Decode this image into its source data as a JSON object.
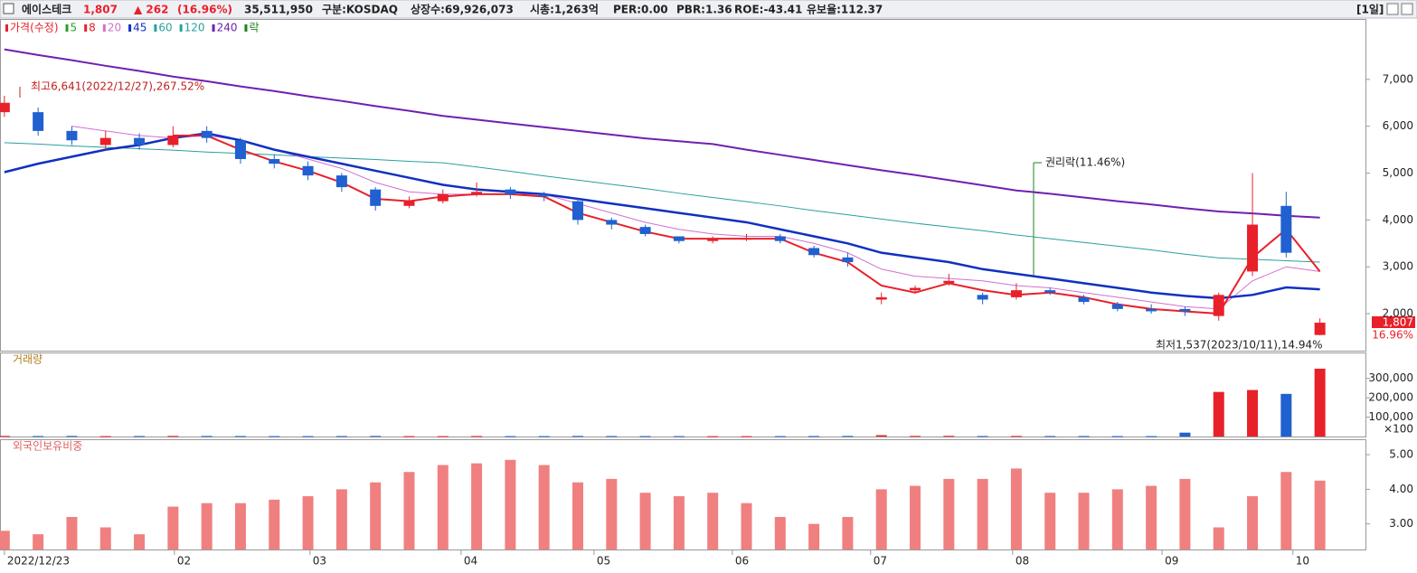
{
  "header": {
    "name": "에이스테크",
    "price": "1,807",
    "change": "▲ 262",
    "change_pct": "(16.96%)",
    "volume": "35,511,950",
    "market": "구분:KOSDAQ",
    "shares": "상장수:69,926,073",
    "cap": "시총:1,263억",
    "per": "PER:0.00",
    "pbr": "PBR:1.36",
    "roe": "ROE:-43.41",
    "reserve": "유보율:112.37",
    "period": "[1일]"
  },
  "chart_data": [
    {
      "type": "candlestick",
      "up_color": "#e8202a",
      "down_color": "#2060d0",
      "legend": [
        {
          "name": "가격(수정)",
          "color": "#e8202a"
        },
        {
          "name": "5",
          "color": "#28a028"
        },
        {
          "name": "8",
          "color": "#e8202a"
        },
        {
          "name": "20",
          "color": "#d070d0"
        },
        {
          "name": "45",
          "color": "#1030c0"
        },
        {
          "name": "60",
          "color": "#2aa0a0"
        },
        {
          "name": "120",
          "color": "#2aa0a0"
        },
        {
          "name": "240",
          "color": "#7020b0"
        },
        {
          "name": "락",
          "color": "#208020"
        }
      ],
      "open": [
        6300,
        6300,
        5900,
        5600,
        5750,
        5600,
        5900,
        5700,
        5300,
        5150,
        4950,
        4650,
        4300,
        4400,
        4550,
        4650,
        4550,
        4400,
        4000,
        3850,
        3650,
        3550,
        3580,
        3650,
        3400,
        3200,
        2300,
        2500,
        2650,
        2400,
        2350,
        2500,
        2350,
        2200,
        2100,
        2100,
        1950,
        2900,
        4300,
        1545
      ],
      "high": [
        6650,
        6400,
        6000,
        5900,
        5850,
        6000,
        6000,
        5750,
        5400,
        5250,
        5000,
        4700,
        4500,
        4650,
        4800,
        4700,
        4600,
        4450,
        4050,
        3900,
        3650,
        3650,
        3700,
        3700,
        3450,
        3300,
        2450,
        2600,
        2850,
        2450,
        2650,
        2550,
        2400,
        2250,
        2200,
        2150,
        2450,
        5000,
        4600,
        1900
      ],
      "low": [
        6200,
        5800,
        5600,
        5500,
        5500,
        5550,
        5650,
        5200,
        5100,
        4850,
        4600,
        4200,
        4250,
        4350,
        4500,
        4450,
        4400,
        3900,
        3800,
        3650,
        3500,
        3500,
        3550,
        3500,
        3200,
        3000,
        2200,
        2450,
        2600,
        2200,
        2300,
        2400,
        2200,
        2050,
        2000,
        1950,
        1850,
        2800,
        3200,
        1537
      ],
      "close": [
        6500,
        5900,
        5700,
        5750,
        5600,
        5800,
        5750,
        5300,
        5200,
        4950,
        4700,
        4300,
        4400,
        4550,
        4600,
        4550,
        4500,
        4000,
        3900,
        3700,
        3550,
        3600,
        3600,
        3550,
        3250,
        3100,
        2350,
        2550,
        2700,
        2300,
        2500,
        2450,
        2250,
        2100,
        2050,
        2050,
        2400,
        3900,
        3300,
        1807
      ],
      "series": [
        {
          "name": "240",
          "color": "#7020b0",
          "width": 2,
          "values": [
            7640,
            7520,
            7410,
            7290,
            7180,
            7060,
            6960,
            6850,
            6750,
            6640,
            6540,
            6430,
            6330,
            6220,
            6140,
            6060,
            5980,
            5900,
            5820,
            5740,
            5680,
            5620,
            5500,
            5390,
            5280,
            5170,
            5060,
            4960,
            4850,
            4740,
            4630,
            4560,
            4480,
            4400,
            4330,
            4250,
            4180,
            4140,
            4090,
            4050
          ]
        },
        {
          "name": "120",
          "color": "#2aa0a0",
          "width": 1,
          "values": [
            5650,
            5620,
            5580,
            5550,
            5520,
            5490,
            5450,
            5420,
            5390,
            5350,
            5320,
            5290,
            5250,
            5220,
            5130,
            5040,
            4940,
            4850,
            4760,
            4670,
            4570,
            4480,
            4390,
            4300,
            4200,
            4110,
            4020,
            3930,
            3850,
            3770,
            3680,
            3600,
            3520,
            3440,
            3360,
            3270,
            3190,
            3160,
            3130,
            3100
          ]
        },
        {
          "name": "20",
          "color": "#d070d0",
          "width": 1,
          "values": [
            null,
            null,
            6000,
            5900,
            5800,
            5750,
            5800,
            5700,
            5500,
            5300,
            5100,
            4800,
            4600,
            4550,
            4550,
            4550,
            4550,
            4350,
            4150,
            3950,
            3800,
            3700,
            3650,
            3650,
            3500,
            3300,
            2950,
            2800,
            2750,
            2700,
            2600,
            2550,
            2450,
            2350,
            2250,
            2150,
            2100,
            2700,
            3000,
            2900
          ]
        },
        {
          "name": "45",
          "color": "#1030c0",
          "width": 2.5,
          "values": [
            5020,
            5200,
            5350,
            5500,
            5600,
            5750,
            5850,
            5700,
            5500,
            5350,
            5200,
            5050,
            4900,
            4750,
            4650,
            4600,
            4550,
            4450,
            4350,
            4250,
            4150,
            4050,
            3950,
            3800,
            3650,
            3500,
            3300,
            3200,
            3100,
            2950,
            2850,
            2750,
            2650,
            2550,
            2450,
            2380,
            2330,
            2400,
            2560,
            2520
          ]
        },
        {
          "name": "8",
          "color": "#e8202a",
          "width": 2,
          "values": [
            null,
            null,
            null,
            null,
            null,
            5800,
            5800,
            5500,
            5250,
            5050,
            4800,
            4450,
            4400,
            4500,
            4550,
            4550,
            4500,
            4150,
            3950,
            3750,
            3600,
            3600,
            3600,
            3600,
            3300,
            3100,
            2600,
            2450,
            2650,
            2500,
            2400,
            2450,
            2350,
            2200,
            2100,
            2050,
            2000,
            3200,
            3800,
            2900
          ]
        }
      ],
      "xlim": [
        -0.13,
        40.35
      ],
      "xticks": [
        {
          "value": 0,
          "label": "2022/12/23"
        },
        {
          "value": 5.04,
          "label": "02"
        },
        {
          "value": 9.06,
          "label": "03"
        },
        {
          "value": 13.54,
          "label": "04"
        },
        {
          "value": 17.48,
          "label": "05"
        },
        {
          "value": 21.58,
          "label": "06"
        },
        {
          "value": 25.68,
          "label": "07"
        },
        {
          "value": 29.89,
          "label": "08"
        },
        {
          "value": 34.32,
          "label": "09"
        },
        {
          "value": 38.2,
          "label": "10"
        }
      ],
      "ylim": [
        1210,
        8270
      ],
      "yticks": [
        {
          "value": 2000,
          "label": "2,000"
        },
        {
          "value": 3000,
          "label": "3,000"
        },
        {
          "value": 4000,
          "label": "4,000"
        },
        {
          "value": 5000,
          "label": "5,000"
        },
        {
          "value": 6000,
          "label": "6,000"
        },
        {
          "value": 7000,
          "label": "7,000"
        }
      ],
      "high_note": "최고6,641(2022/12/27),267.52%",
      "rights_note": "권리락(11.46%)",
      "low_note": "최저1,537(2023/10/11),14.94%",
      "price_label_pct": "16.96%"
    },
    {
      "type": "bar",
      "title": "거래량",
      "unit_label": "×100",
      "values": [
        3000,
        2500,
        3000,
        2000,
        2500,
        3000,
        2800,
        2500,
        2000,
        2000,
        2500,
        3000,
        2000,
        2000,
        2500,
        2000,
        2000,
        3000,
        2500,
        2000,
        2000,
        1800,
        1800,
        2000,
        2500,
        3000,
        7000,
        3000,
        3500,
        2500,
        3000,
        2500,
        2500,
        2000,
        2000,
        20000,
        230000,
        240000,
        220000,
        350000
      ],
      "ylim": [
        0,
        429000
      ],
      "yticks": [
        {
          "value": 100000,
          "label": "100,000"
        },
        {
          "value": 200000,
          "label": "200,000"
        },
        {
          "value": 300000,
          "label": "300,000"
        }
      ]
    },
    {
      "type": "bar",
      "title": "외국인보유비중",
      "color": "#f08080",
      "values": [
        2.8,
        2.7,
        3.2,
        2.9,
        2.7,
        3.5,
        3.6,
        3.6,
        3.7,
        3.8,
        4.0,
        4.2,
        4.5,
        4.7,
        4.75,
        4.85,
        4.7,
        4.2,
        4.3,
        3.9,
        3.8,
        3.9,
        3.6,
        3.2,
        3.0,
        3.2,
        4.0,
        4.1,
        4.3,
        4.3,
        4.6,
        3.9,
        3.9,
        4.0,
        4.1,
        4.3,
        2.9,
        3.8,
        4.5,
        4.25
      ],
      "ylim": [
        2.26,
        5.42
      ],
      "yticks": [
        {
          "value": 3,
          "label": "3.00"
        },
        {
          "value": 4,
          "label": "4.00"
        },
        {
          "value": 5,
          "label": "5.00"
        }
      ]
    }
  ]
}
